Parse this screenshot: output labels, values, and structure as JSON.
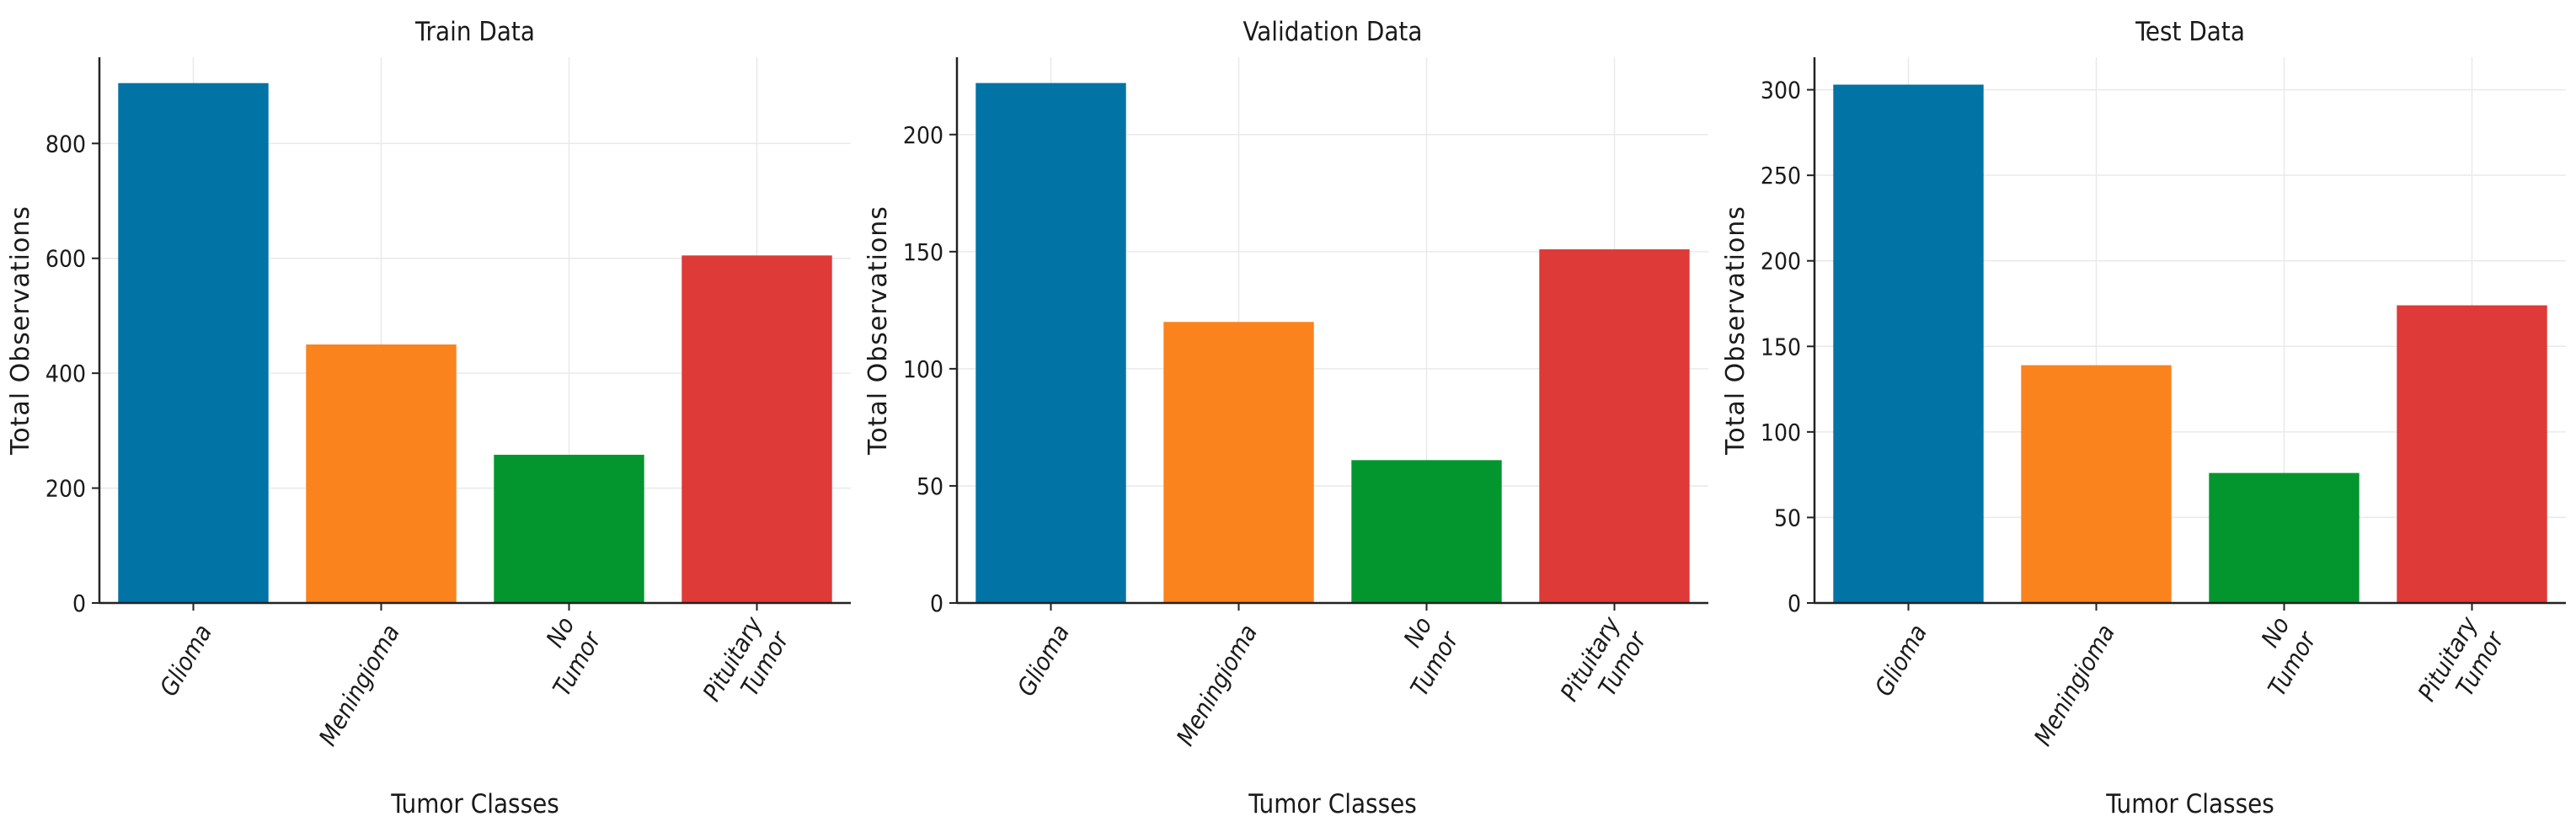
{
  "chart_data": [
    {
      "type": "bar",
      "title": "Train Data",
      "xlabel": "Tumor Classes",
      "ylabel": "Total Observations",
      "categories": [
        [
          "Glioma"
        ],
        [
          "Meningioma"
        ],
        [
          "No",
          "Tumor"
        ],
        [
          "Pituitary",
          "Tumor"
        ]
      ],
      "values": [
        905,
        450,
        258,
        605
      ],
      "colors": [
        "#0173a5",
        "#fa831d",
        "#03962f",
        "#de3a38"
      ],
      "ylim": [
        0,
        950
      ],
      "yticks": [
        0,
        200,
        400,
        600,
        800
      ],
      "grid": true
    },
    {
      "type": "bar",
      "title": "Validation Data",
      "xlabel": "Tumor Classes",
      "ylabel": "Total Observations",
      "categories": [
        [
          "Glioma"
        ],
        [
          "Meningioma"
        ],
        [
          "No",
          "Tumor"
        ],
        [
          "Pituitary",
          "Tumor"
        ]
      ],
      "values": [
        222,
        120,
        61,
        151
      ],
      "colors": [
        "#0173a5",
        "#fa831d",
        "#03962f",
        "#de3a38"
      ],
      "ylim": [
        0,
        233
      ],
      "yticks": [
        0,
        50,
        100,
        150,
        200
      ],
      "grid": true
    },
    {
      "type": "bar",
      "title": "Test Data",
      "xlabel": "Tumor Classes",
      "ylabel": "Total Observations",
      "categories": [
        [
          "Glioma"
        ],
        [
          "Meningioma"
        ],
        [
          "No",
          "Tumor"
        ],
        [
          "Pituitary",
          "Tumor"
        ]
      ],
      "values": [
        303,
        139,
        76,
        174
      ],
      "colors": [
        "#0173a5",
        "#fa831d",
        "#03962f",
        "#de3a38"
      ],
      "ylim": [
        0,
        319
      ],
      "yticks": [
        0,
        50,
        100,
        150,
        200,
        250,
        300
      ],
      "grid": true
    }
  ]
}
